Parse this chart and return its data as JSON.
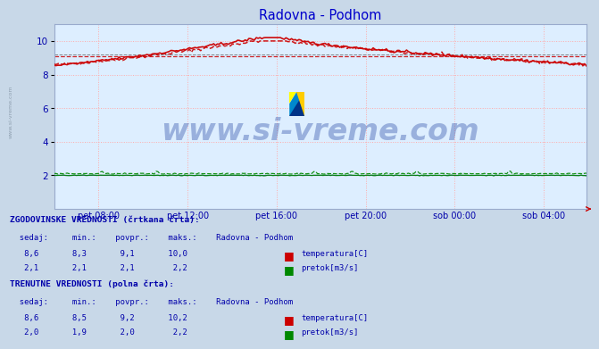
{
  "title": "Radovna - Podhom",
  "title_color": "#0000cc",
  "plot_bg_color": "#ddeeff",
  "outer_bg_color": "#c8d8e8",
  "grid_color": "#ffaaaa",
  "ylim": [
    0,
    11
  ],
  "yticks": [
    2,
    4,
    6,
    8,
    10
  ],
  "xlabel_color": "#0000aa",
  "xtick_labels": [
    "pet 08:00",
    "pet 12:00",
    "pet 16:00",
    "pet 20:00",
    "sob 00:00",
    "sob 04:00"
  ],
  "temp_color": "#cc0000",
  "flow_color": "#008800",
  "blue_line_color": "#3333bb",
  "watermark_color": "#3355aa",
  "watermark_text": "www.si-vreme.com",
  "watermark_fontsize": 24,
  "hist_avg_temp": 9.1,
  "curr_avg_temp": 9.2,
  "hist_avg_flow": 2.1,
  "curr_avg_flow": 2.0,
  "text_color": "#0000aa",
  "hist_label1": "ZGODOVINSKE VREDNOSTI (črtkana črta):",
  "curr_label1": "TRENUTNE VREDNOSTI (polna črta):",
  "header": "  sedaj:    min.:    povpr.:    maks.:    Radovna - Podhom",
  "hist_temp_row": "   8,6       8,3       9,1       10,0",
  "hist_flow_row": "   2,1       2,1       2,1        2,2",
  "curr_temp_row": "   8,6       8,5       9,2       10,2",
  "curr_flow_row": "   2,0       1,9       2,0        2,2",
  "temp_label": "temperatura[C]",
  "flow_label": "pretok[m3/s]"
}
